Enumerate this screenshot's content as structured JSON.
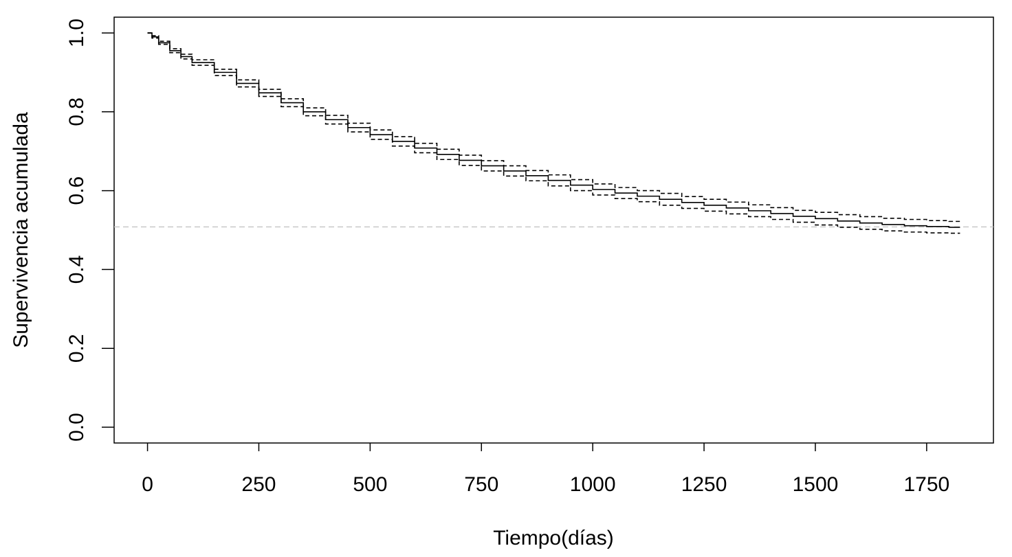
{
  "chart_data": {
    "type": "line",
    "title": "",
    "xlabel": "Tiempo(días)",
    "ylabel": "Supervivencia acumulada",
    "xlim": [
      -75,
      1900
    ],
    "ylim": [
      -0.04,
      1.04
    ],
    "xticks": [
      0,
      250,
      500,
      750,
      1000,
      1250,
      1500,
      1750
    ],
    "xtick_labels": [
      "0",
      "250",
      "500",
      "750",
      "1000",
      "1250",
      "1500",
      "1750"
    ],
    "yticks": [
      0.0,
      0.2,
      0.4,
      0.6,
      0.8,
      1.0
    ],
    "ytick_labels": [
      "0.0",
      "0.2",
      "0.4",
      "0.6",
      "0.8",
      "1.0"
    ],
    "reference_line": {
      "y": 0.508,
      "style": "dashed",
      "color": "#c8c8c8"
    },
    "series": [
      {
        "style": "solid",
        "color": "#000000",
        "x": [
          0,
          10,
          25,
          50,
          75,
          100,
          150,
          200,
          250,
          300,
          350,
          400,
          450,
          500,
          550,
          600,
          650,
          700,
          750,
          800,
          850,
          900,
          950,
          1000,
          1050,
          1100,
          1150,
          1200,
          1250,
          1300,
          1350,
          1400,
          1450,
          1500,
          1550,
          1600,
          1650,
          1700,
          1750,
          1800,
          1825
        ],
        "y": [
          1.0,
          0.99,
          0.975,
          0.955,
          0.94,
          0.925,
          0.9,
          0.872,
          0.848,
          0.823,
          0.8,
          0.78,
          0.76,
          0.742,
          0.725,
          0.708,
          0.692,
          0.677,
          0.663,
          0.65,
          0.638,
          0.626,
          0.614,
          0.603,
          0.594,
          0.586,
          0.578,
          0.57,
          0.563,
          0.556,
          0.549,
          0.542,
          0.535,
          0.529,
          0.523,
          0.518,
          0.514,
          0.511,
          0.509,
          0.507,
          0.507
        ]
      },
      {
        "style": "dashed",
        "color": "#000000",
        "x": [
          0,
          10,
          25,
          50,
          75,
          100,
          150,
          200,
          250,
          300,
          350,
          400,
          450,
          500,
          550,
          600,
          650,
          700,
          750,
          800,
          850,
          900,
          950,
          1000,
          1050,
          1100,
          1150,
          1200,
          1250,
          1300,
          1350,
          1400,
          1450,
          1500,
          1550,
          1600,
          1650,
          1700,
          1750,
          1800,
          1825
        ],
        "y": [
          1.0,
          0.993,
          0.979,
          0.96,
          0.946,
          0.932,
          0.908,
          0.881,
          0.857,
          0.833,
          0.81,
          0.791,
          0.771,
          0.754,
          0.737,
          0.72,
          0.705,
          0.69,
          0.676,
          0.663,
          0.651,
          0.64,
          0.628,
          0.617,
          0.608,
          0.6,
          0.593,
          0.585,
          0.578,
          0.571,
          0.564,
          0.557,
          0.55,
          0.545,
          0.539,
          0.534,
          0.53,
          0.527,
          0.524,
          0.522,
          0.521
        ]
      },
      {
        "style": "dashed",
        "color": "#000000",
        "x": [
          0,
          10,
          25,
          50,
          75,
          100,
          150,
          200,
          250,
          300,
          350,
          400,
          450,
          500,
          550,
          600,
          650,
          700,
          750,
          800,
          850,
          900,
          950,
          1000,
          1050,
          1100,
          1150,
          1200,
          1250,
          1300,
          1350,
          1400,
          1450,
          1500,
          1550,
          1600,
          1650,
          1700,
          1750,
          1800,
          1825
        ],
        "y": [
          1.0,
          0.987,
          0.971,
          0.95,
          0.934,
          0.918,
          0.892,
          0.863,
          0.839,
          0.813,
          0.79,
          0.769,
          0.749,
          0.73,
          0.713,
          0.696,
          0.679,
          0.664,
          0.65,
          0.637,
          0.625,
          0.612,
          0.6,
          0.589,
          0.58,
          0.572,
          0.563,
          0.555,
          0.548,
          0.541,
          0.534,
          0.527,
          0.52,
          0.513,
          0.507,
          0.502,
          0.498,
          0.495,
          0.493,
          0.492,
          0.492
        ]
      }
    ]
  }
}
